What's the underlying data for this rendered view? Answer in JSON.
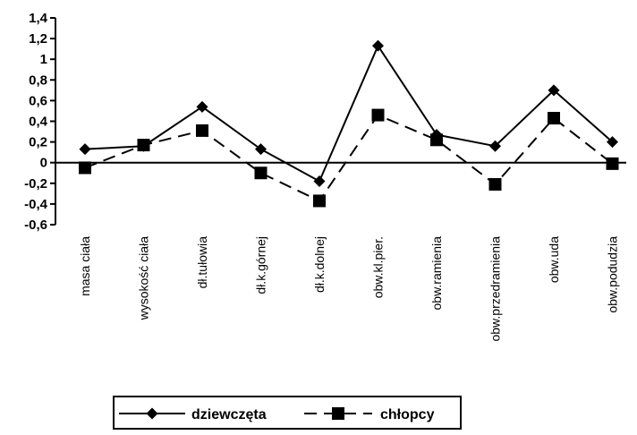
{
  "chart_data": {
    "type": "line",
    "title": "",
    "xlabel": "",
    "ylabel": "",
    "categories": [
      "masa ciała",
      "wysokość ciała",
      "dł.tułowia",
      "dł.k.górnej",
      "dł.k.dolnej",
      "obw.kl.pier.",
      "obw.ramienia",
      "obw.przedramienia",
      "obw.uda",
      "obw.podudzia"
    ],
    "series": [
      {
        "name": "dziewczęta",
        "marker": "diamond",
        "line": "solid",
        "values": [
          0.13,
          0.16,
          0.54,
          0.13,
          -0.18,
          1.13,
          0.27,
          0.16,
          0.7,
          0.2
        ]
      },
      {
        "name": "chłopcy",
        "marker": "square",
        "line": "dashed",
        "values": [
          -0.05,
          0.17,
          0.31,
          -0.1,
          -0.37,
          0.46,
          0.22,
          -0.21,
          0.43,
          -0.01
        ]
      }
    ],
    "ylim": [
      -0.6,
      1.4
    ],
    "yticks": [
      -0.6,
      -0.4,
      -0.2,
      0,
      0.2,
      0.4,
      0.6,
      0.8,
      1,
      1.2,
      1.4
    ],
    "ytick_labels": [
      "-0,6",
      "-0,4",
      "-0,2",
      "0",
      "0,2",
      "0,4",
      "0,6",
      "0,8",
      "1",
      "1,2",
      "1,4"
    ],
    "grid": false,
    "legend_position": "bottom-center",
    "colors": {
      "line": "#000000",
      "background": "#ffffff"
    }
  }
}
